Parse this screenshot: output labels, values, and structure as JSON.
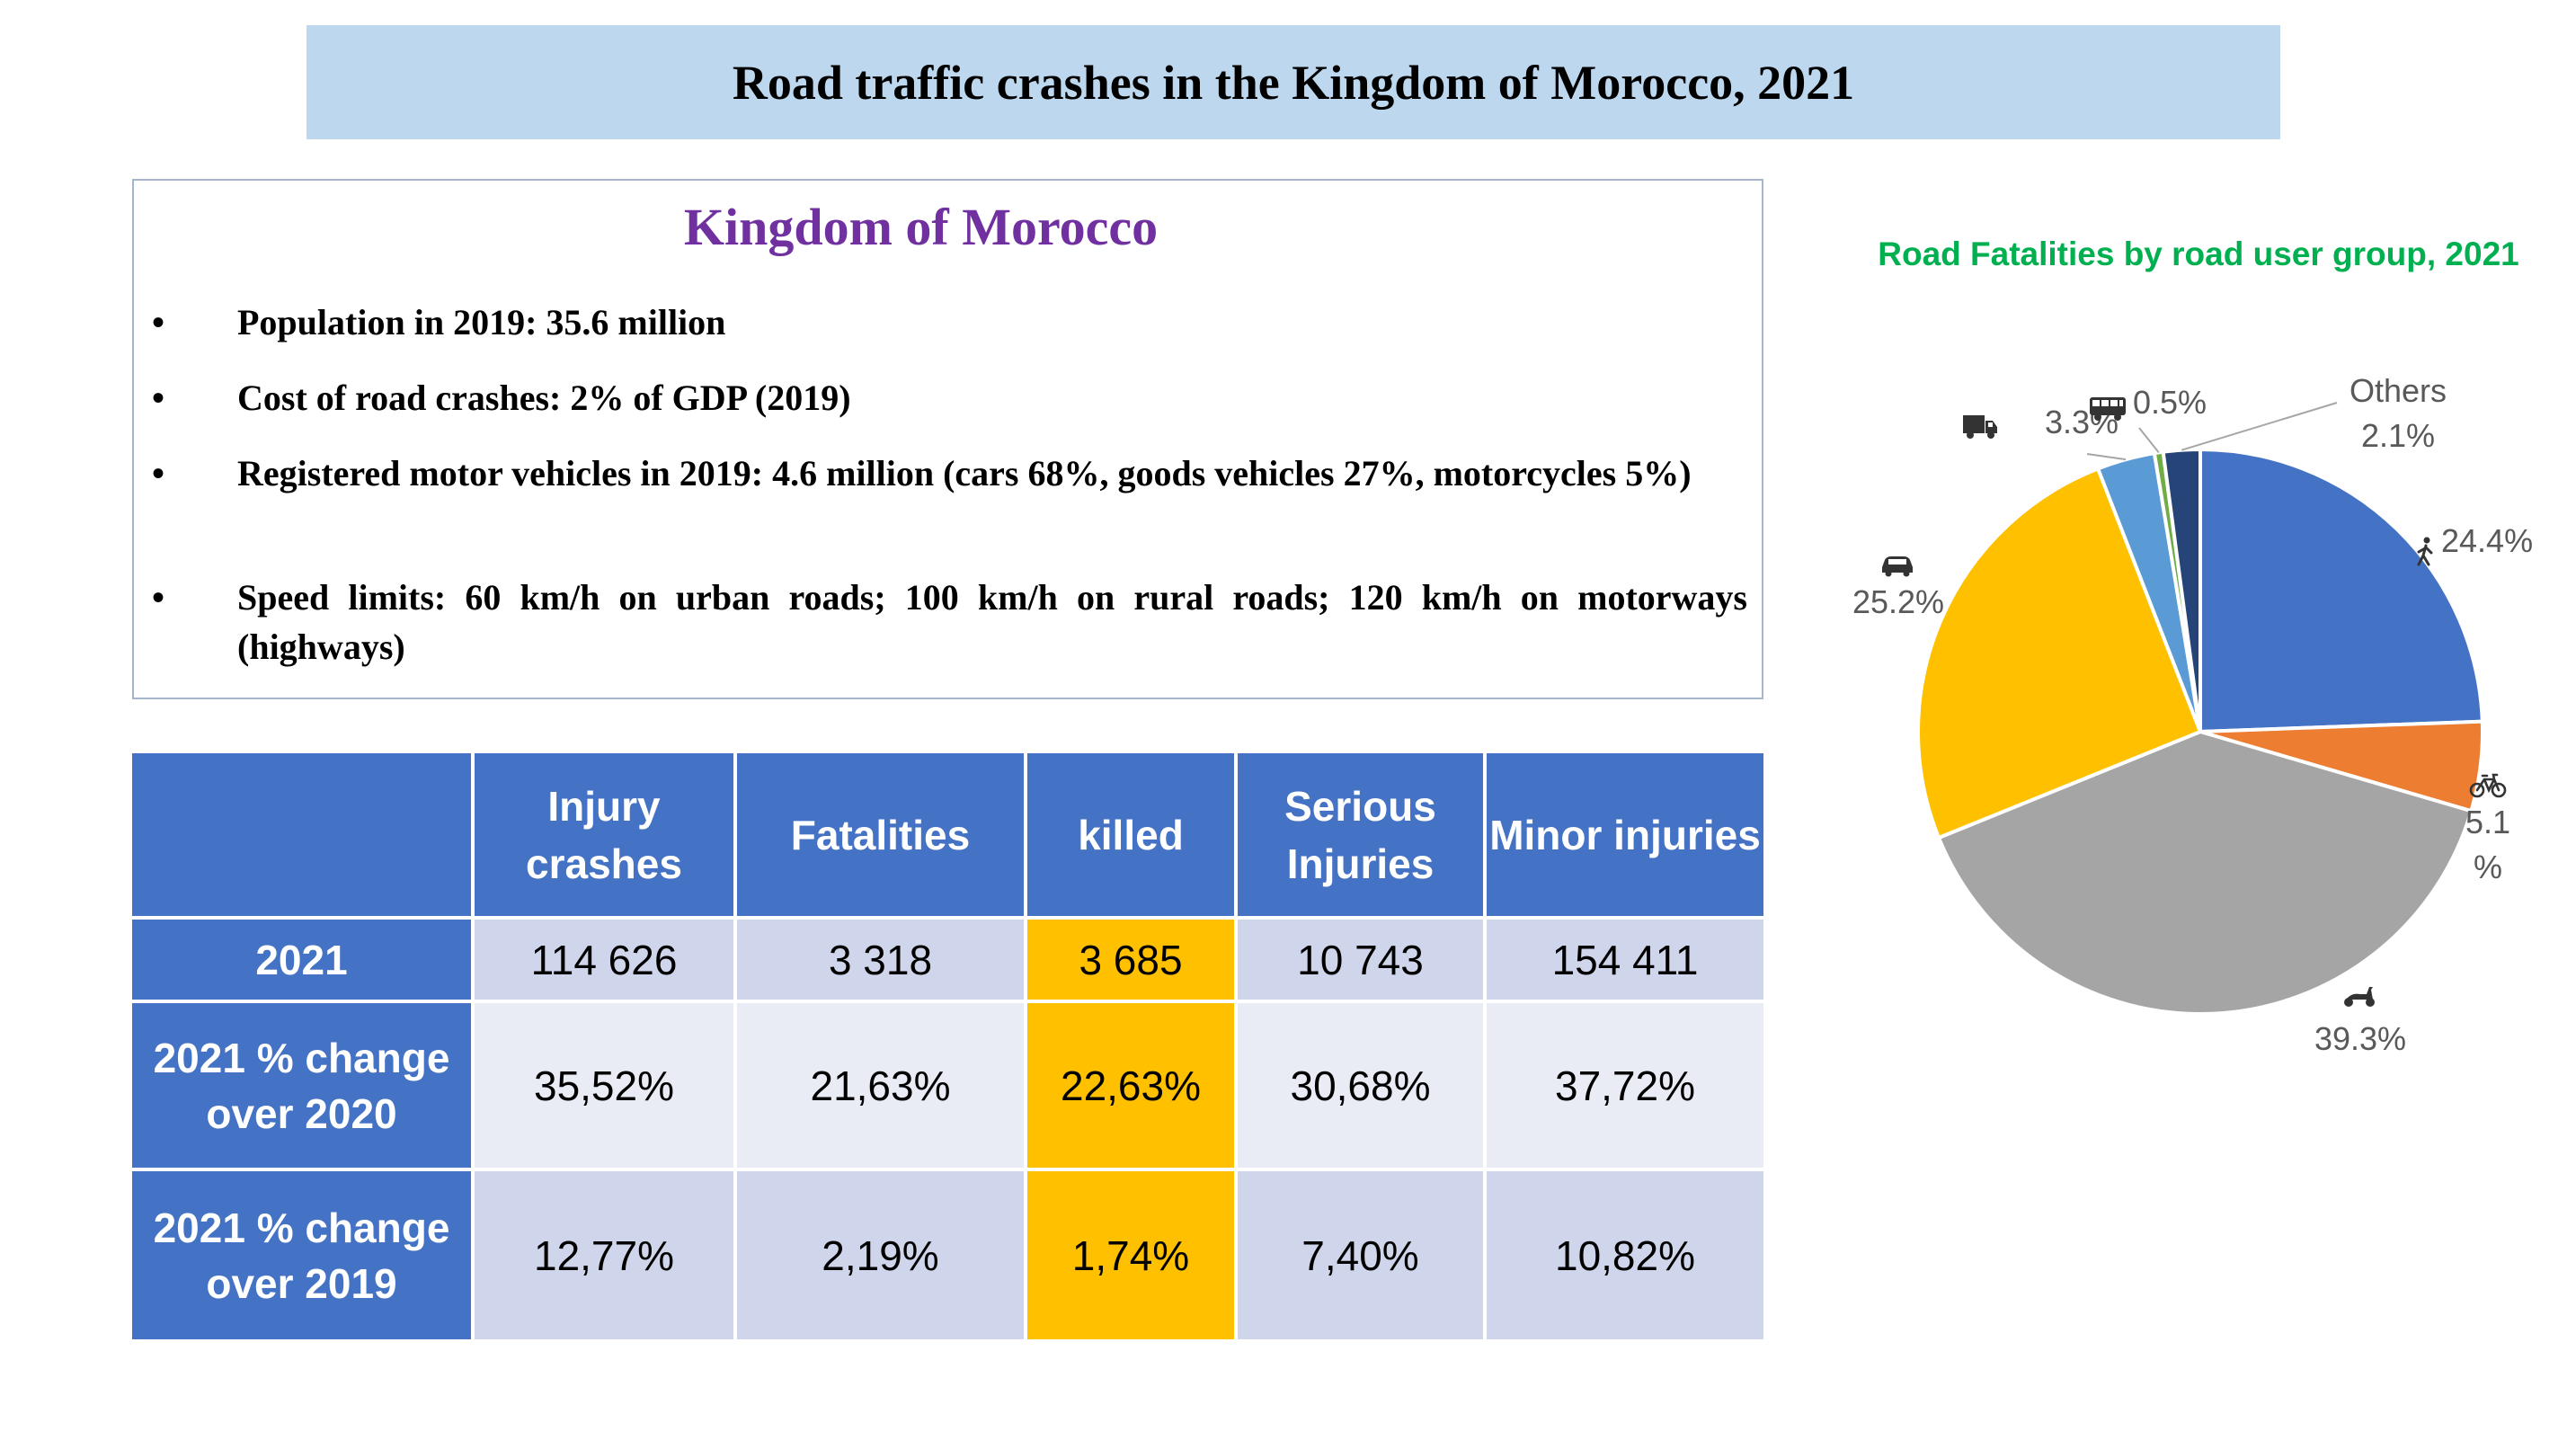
{
  "page": {
    "title": "Road traffic crashes in the Kingdom of Morocco, 2021"
  },
  "info": {
    "heading": "Kingdom of Morocco",
    "bullet_symbol": "•",
    "items": [
      "Population in 2019: 35.6 million",
      "Cost of road crashes: 2% of GDP (2019)",
      "Registered motor vehicles in 2019: 4.6 million (cars 68%, goods vehicles 27%, motorcycles 5%)",
      "Speed limits: 60 km/h on urban roads; 100 km/h on rural roads; 120 km/h on motorways (highways)"
    ]
  },
  "table": {
    "headers": [
      "",
      "Injury crashes",
      "Fatalities",
      "killed",
      "Serious Injuries",
      "Minor injuries"
    ],
    "rows": [
      {
        "label": "2021",
        "values": [
          "114 626",
          "3 318",
          "3 685",
          "10 743",
          "154 411"
        ]
      },
      {
        "label": "2021 % change over 2020",
        "values": [
          "35,52%",
          "21,63%",
          "22,63%",
          "30,68%",
          "37,72%"
        ]
      },
      {
        "label": "2021 % change over 2019",
        "values": [
          "12,77%",
          "2,19%",
          "1,74%",
          "7,40%",
          "10,82%"
        ]
      }
    ],
    "header_color": "#4472c4",
    "highlight_color": "#ffc000",
    "row_colors": [
      "#cfd5ea",
      "#e9ebf5"
    ]
  },
  "chart_data": {
    "type": "pie",
    "title": "Road Fatalities by road user group, 2021",
    "slices": [
      {
        "label": "24.4%",
        "value": 24.4,
        "icon": "pedestrian-icon",
        "color": "#4472c4"
      },
      {
        "label": "5.1 %",
        "value": 5.1,
        "icon": "bicycle-icon",
        "color": "#ed7d31"
      },
      {
        "label": "39.3%",
        "value": 39.3,
        "icon": "scooter-icon",
        "color": "#a5a5a5"
      },
      {
        "label": "25.2%",
        "value": 25.2,
        "icon": "car-icon",
        "color": "#ffc000"
      },
      {
        "label": "3.3%",
        "value": 3.3,
        "icon": "truck-icon",
        "color": "#5b9bd5"
      },
      {
        "label": "0.5%",
        "value": 0.5,
        "icon": "bus-icon",
        "color": "#70ad47"
      },
      {
        "label": "2.1%",
        "value": 2.1,
        "name": "Others",
        "color": "#264478"
      }
    ],
    "start_angle_deg": 0,
    "direction": "clockwise",
    "legend": "none"
  }
}
